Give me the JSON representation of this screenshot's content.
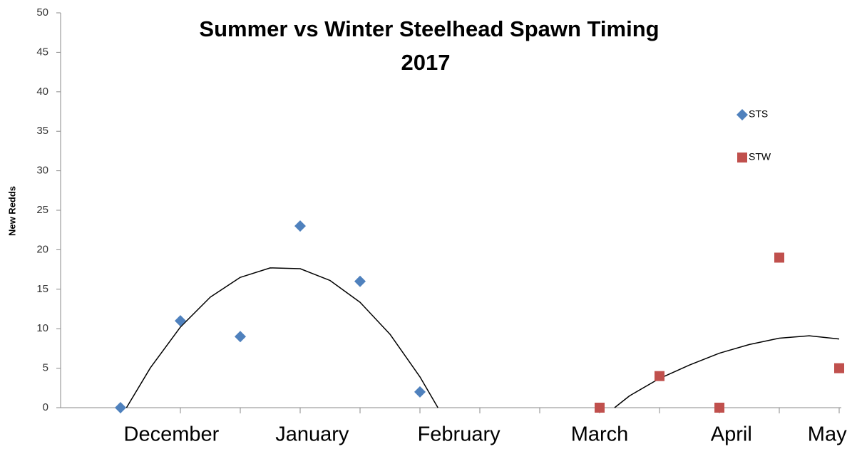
{
  "chart_data": {
    "type": "scatter",
    "title": [
      "Summer vs Winter Steelhead Spawn Timing",
      "2017"
    ],
    "ylabel": "New Redds",
    "xlim": [
      0,
      13
    ],
    "xtick_marks": [
      1,
      2,
      3,
      4,
      5,
      6,
      7,
      8,
      9,
      10,
      11,
      12,
      13
    ],
    "xticks": [
      {
        "value": 1.85,
        "label": "December"
      },
      {
        "value": 4.2,
        "label": "January"
      },
      {
        "value": 6.65,
        "label": "February"
      },
      {
        "value": 9,
        "label": "March"
      },
      {
        "value": 11.2,
        "label": "April"
      },
      {
        "value": 12.8,
        "label": "May"
      }
    ],
    "ylim": [
      0,
      50
    ],
    "yticks": [
      0,
      5,
      10,
      15,
      20,
      25,
      30,
      35,
      40,
      45,
      50
    ],
    "grid": false,
    "legend": "right",
    "series": [
      {
        "name": "STS",
        "color": "#4f81bd",
        "marker": "diamond",
        "x": [
          1,
          2,
          3,
          4,
          5,
          6
        ],
        "values": [
          0,
          11,
          9,
          23,
          16,
          2
        ]
      },
      {
        "name": "STW",
        "color": "#c0504d",
        "marker": "square",
        "x": [
          9,
          10,
          11,
          12,
          13
        ],
        "values": [
          0,
          4,
          0,
          19,
          5
        ]
      }
    ],
    "trendlines": [
      {
        "color": "#000000",
        "x": [
          1.1,
          1.5,
          2,
          2.5,
          3,
          3.5,
          4,
          4.5,
          5,
          5.5,
          6,
          6.3
        ],
        "values": [
          0,
          5.06,
          10.2,
          14.0,
          16.5,
          17.7,
          17.6,
          16.1,
          13.35,
          9.3,
          3.9,
          0
        ]
      },
      {
        "color": "#000000",
        "x": [
          9.25,
          9.5,
          10,
          10.5,
          11,
          11.5,
          12,
          12.5,
          13
        ],
        "values": [
          0,
          1.5,
          3.7,
          5.4,
          6.9,
          8.0,
          8.8,
          9.1,
          8.7
        ]
      }
    ]
  }
}
